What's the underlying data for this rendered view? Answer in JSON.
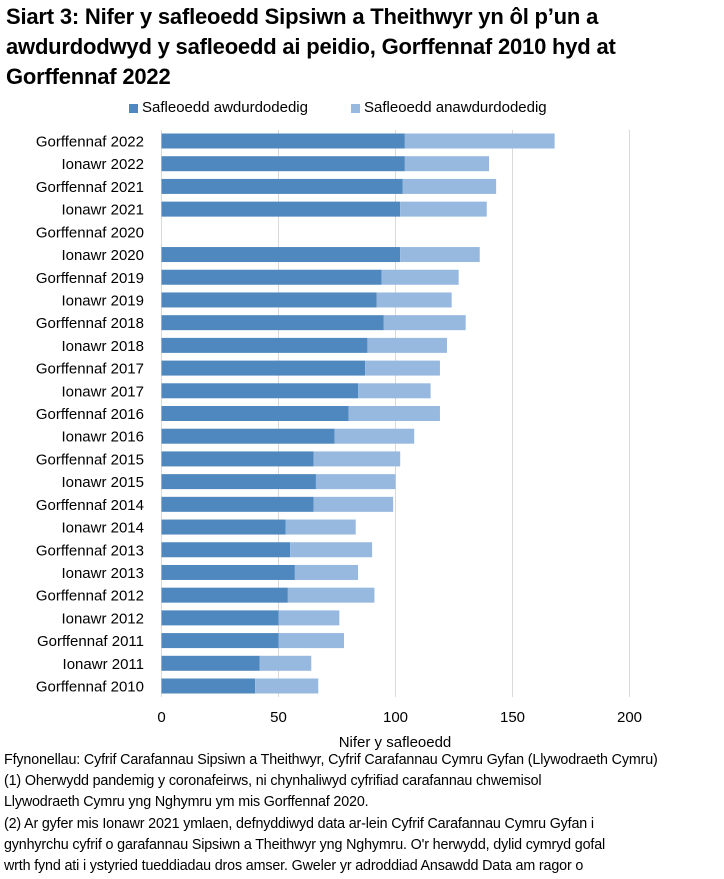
{
  "title": "Siart 3: Nifer y safleoedd Sipsiwn a Theithwyr yn ôl p’un a awdurdodwyd y safleoedd ai peidio, Gorffennaf 2010 hyd at Gorffennaf 2022",
  "colors": {
    "authorised": "#4F88BE",
    "unauthorised": "#97B9E0",
    "grid": "#D9D9D9",
    "axis_text": "#000000"
  },
  "chart_data": {
    "type": "bar",
    "orientation": "horizontal",
    "stacked": true,
    "title": "Siart 3: Nifer y safleoedd Sipsiwn a Theithwyr yn ôl p’un a awdurdodwyd y safleoedd ai peidio, Gorffennaf 2010 hyd at Gorffennaf 2022",
    "xlabel": "Nifer y safleoedd",
    "ylabel": "",
    "xlim": [
      0,
      200
    ],
    "xticks": [
      0,
      50,
      100,
      150,
      200
    ],
    "grid": true,
    "legend_position": "top-center",
    "categories": [
      "Gorffennaf 2022",
      "Ionawr 2022",
      "Gorffennaf 2021",
      "Ionawr 2021",
      "Gorffennaf 2020",
      "Ionawr 2020",
      "Gorffennaf 2019",
      "Ionawr 2019",
      "Gorffennaf 2018",
      "Ionawr 2018",
      "Gorffennaf 2017",
      "Ionawr 2017",
      "Gorffennaf 2016",
      "Ionawr 2016",
      "Gorffennaf 2015",
      "Ionawr 2015",
      "Gorffennaf 2014",
      "Ionawr 2014",
      "Gorffennaf 2013",
      "Ionawr 2013",
      "Gorffennaf 2012",
      "Ionawr 2012",
      "Gorffennaf 2011",
      "Ionawr 2011",
      "Gorffennaf 2010"
    ],
    "series": [
      {
        "name": "Safleoedd awdurdodedig",
        "values": [
          104,
          104,
          103,
          102,
          null,
          102,
          94,
          92,
          95,
          88,
          87,
          84,
          80,
          74,
          65,
          66,
          65,
          53,
          55,
          57,
          54,
          50,
          50,
          42,
          40
        ]
      },
      {
        "name": "Safleoedd anawdurdodedig",
        "values": [
          64,
          36,
          40,
          37,
          null,
          34,
          33,
          32,
          35,
          34,
          32,
          31,
          39,
          34,
          37,
          34,
          34,
          30,
          35,
          27,
          37,
          26,
          28,
          22,
          27
        ]
      }
    ]
  },
  "footer": {
    "lines": [
      "Ffynonellau: Cyfrif Carafannau Sipsiwn a Theithwyr, Cyfrif Carafannau Cymru Gyfan (Llywodraeth Cymru)",
      "(1) Oherwydd pandemig y coronafeirws, ni chynhaliwyd cyfrifiad carafannau chwemisol",
      "Llywodraeth Cymru yng Nghymru ym mis Gorffennaf 2020.",
      "(2) Ar gyfer mis Ionawr 2021 ymlaen, defnyddiwyd data ar-lein Cyfrif Carafannau Cymru Gyfan i",
      "gynhyrchu cyfrif o garafannau Sipsiwn a Theithwyr yng Nghymru. O'r herwydd, dylid cymryd gofal",
      "wrth fynd ati i ystyried tueddiadau dros amser. Gweler yr adroddiad Ansawdd Data am ragor o"
    ]
  }
}
